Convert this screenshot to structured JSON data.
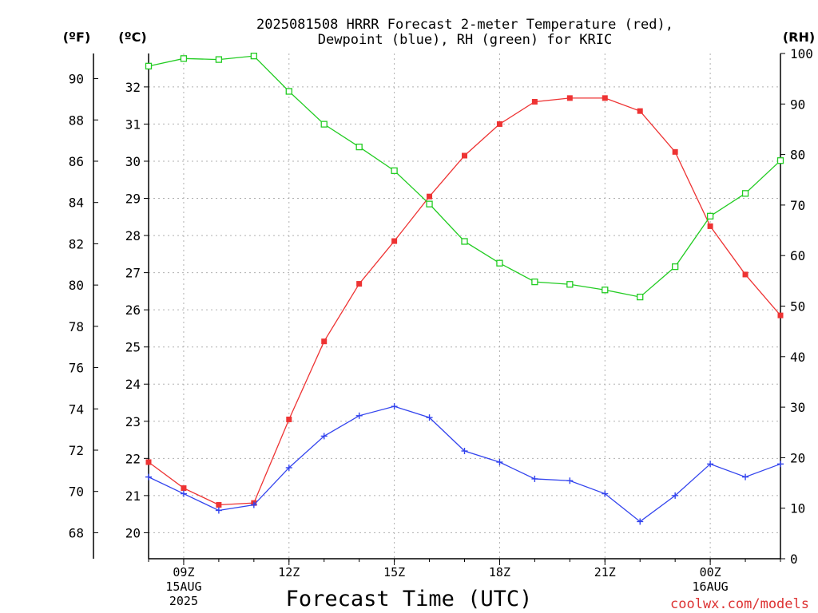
{
  "chart_data": {
    "type": "line",
    "title_line1": "2025081508 HRRR Forecast 2-meter Temperature (red),",
    "title_line2": "Dewpoint (blue), RH (green) for KRIC",
    "xlabel": "Forecast Time (UTC)",
    "left_axis_f_label": "(ºF)",
    "left_axis_c_label": "(ºC)",
    "right_axis_label": "(RH)",
    "watermark": "coolwx.com/models",
    "x_hours": [
      8,
      9,
      10,
      11,
      12,
      13,
      14,
      15,
      16,
      17,
      18,
      19,
      20,
      21,
      22,
      23,
      24,
      25,
      26
    ],
    "x_ticks": [
      {
        "hour": 9,
        "lines": [
          "09Z",
          "15AUG",
          "2025"
        ]
      },
      {
        "hour": 12,
        "lines": [
          "12Z"
        ]
      },
      {
        "hour": 15,
        "lines": [
          "15Z"
        ]
      },
      {
        "hour": 18,
        "lines": [
          "18Z"
        ]
      },
      {
        "hour": 21,
        "lines": [
          "21Z"
        ]
      },
      {
        "hour": 24,
        "lines": [
          "00Z",
          "16AUG"
        ]
      }
    ],
    "xlim": [
      8,
      26
    ],
    "ylim_c": [
      19.3,
      32.9
    ],
    "ylim_f": [
      66.74,
      91.22
    ],
    "ylim_rh": [
      0,
      100
    ],
    "ticks_c": [
      20,
      21,
      22,
      23,
      24,
      25,
      26,
      27,
      28,
      29,
      30,
      31,
      32
    ],
    "ticks_f": [
      68,
      70,
      72,
      74,
      76,
      78,
      80,
      82,
      84,
      86,
      88,
      90
    ],
    "ticks_rh": [
      0,
      10,
      20,
      30,
      40,
      50,
      60,
      70,
      80,
      90,
      100
    ],
    "series": [
      {
        "name": "2-meter Temperature",
        "color": "#ee3333",
        "marker": "filled-square",
        "axis": "c",
        "values": [
          21.9,
          21.2,
          20.75,
          20.8,
          23.05,
          25.15,
          26.7,
          27.85,
          29.05,
          30.15,
          31.0,
          31.6,
          31.7,
          31.7,
          31.35,
          30.25,
          28.25,
          26.95,
          25.85
        ]
      },
      {
        "name": "Dewpoint",
        "color": "#3344ee",
        "marker": "plus",
        "axis": "c",
        "values": [
          21.5,
          21.05,
          20.6,
          20.75,
          21.75,
          22.6,
          23.15,
          23.4,
          23.1,
          22.2,
          21.9,
          21.45,
          21.4,
          21.05,
          20.3,
          21.0,
          21.85,
          21.5,
          21.85
        ]
      },
      {
        "name": "RH",
        "color": "#22cc22",
        "marker": "open-square",
        "axis": "rh",
        "values": [
          97.5,
          99.0,
          98.8,
          99.5,
          92.5,
          86.0,
          81.5,
          76.8,
          70.2,
          62.8,
          58.5,
          54.8,
          54.3,
          53.2,
          51.8,
          57.8,
          67.8,
          72.3,
          78.8
        ]
      }
    ]
  }
}
